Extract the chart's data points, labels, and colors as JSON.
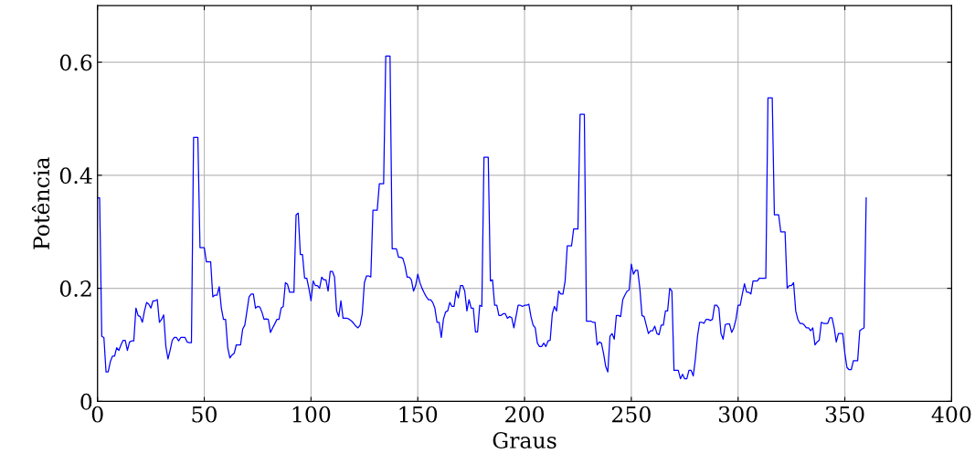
{
  "chart_data": {
    "type": "line",
    "xlabel": "Graus",
    "ylabel": "Potência",
    "xlim": [
      0,
      400
    ],
    "xticks": [
      0,
      50,
      100,
      150,
      200,
      250,
      300,
      350,
      400
    ],
    "ylim": [
      0,
      0.7
    ],
    "yticks": [
      0,
      0.2,
      0.4,
      0.6
    ],
    "grid": true,
    "x": [
      0,
      1,
      2,
      3,
      4,
      5,
      6,
      7,
      8,
      9,
      10,
      11,
      12,
      13,
      14,
      15,
      16,
      17,
      18,
      19,
      20,
      21,
      22,
      23,
      24,
      25,
      26,
      27,
      28,
      29,
      30,
      31,
      32,
      33,
      34,
      35,
      36,
      37,
      38,
      39,
      40,
      41,
      42,
      43,
      44,
      45,
      46,
      47,
      48,
      49,
      50,
      51,
      52,
      53,
      54,
      55,
      56,
      57,
      58,
      59,
      60,
      61,
      62,
      63,
      64,
      65,
      66,
      67,
      68,
      69,
      70,
      71,
      72,
      73,
      74,
      75,
      76,
      77,
      78,
      79,
      80,
      81,
      82,
      83,
      84,
      85,
      86,
      87,
      88,
      89,
      90,
      91,
      92,
      93,
      94,
      95,
      96,
      97,
      98,
      99,
      100,
      101,
      102,
      103,
      104,
      105,
      106,
      107,
      108,
      109,
      110,
      111,
      112,
      113,
      114,
      115,
      116,
      117,
      118,
      119,
      120,
      121,
      122,
      123,
      124,
      125,
      126,
      127,
      128,
      129,
      130,
      131,
      132,
      133,
      134,
      135,
      136,
      137,
      138,
      139,
      140,
      141,
      142,
      143,
      144,
      145,
      146,
      147,
      148,
      149,
      150,
      151,
      152,
      153,
      154,
      155,
      156,
      157,
      158,
      159,
      160,
      161,
      162,
      163,
      164,
      165,
      166,
      167,
      168,
      169,
      170,
      171,
      172,
      173,
      174,
      175,
      176,
      177,
      178,
      179,
      180,
      181,
      182,
      183,
      184,
      185,
      186,
      187,
      188,
      189,
      190,
      191,
      192,
      193,
      194,
      195,
      196,
      197,
      198,
      199,
      200,
      201,
      202,
      203,
      204,
      205,
      206,
      207,
      208,
      209,
      210,
      211,
      212,
      213,
      214,
      215,
      216,
      217,
      218,
      219,
      220,
      221,
      222,
      223,
      224,
      225,
      226,
      227,
      228,
      229,
      230,
      231,
      232,
      233,
      234,
      235,
      236,
      237,
      238,
      239,
      240,
      241,
      242,
      243,
      244,
      245,
      246,
      247,
      248,
      249,
      250,
      251,
      252,
      253,
      254,
      255,
      256,
      257,
      258,
      259,
      260,
      261,
      262,
      263,
      264,
      265,
      266,
      267,
      268,
      269,
      270,
      271,
      272,
      273,
      274,
      275,
      276,
      277,
      278,
      279,
      280,
      281,
      282,
      283,
      284,
      285,
      286,
      287,
      288,
      289,
      290,
      291,
      292,
      293,
      294,
      295,
      296,
      297,
      298,
      299,
      300,
      301,
      302,
      303,
      304,
      305,
      306,
      307,
      308,
      309,
      310,
      311,
      312,
      313,
      314,
      315,
      316,
      317,
      318,
      319,
      320,
      321,
      322,
      323,
      324,
      325,
      326,
      327,
      328,
      329,
      330,
      331,
      332,
      333,
      334,
      335,
      336,
      337,
      338,
      339,
      340,
      341,
      342,
      343,
      344,
      345,
      346,
      347,
      348,
      349,
      350,
      351,
      352,
      353,
      354,
      355,
      356,
      357,
      358,
      359,
      360
    ],
    "series": [
      {
        "color": "#0000ff",
        "values": [
          0.36,
          0.36,
          0.115,
          0.113,
          0.052,
          0.052,
          0.07,
          0.08,
          0.08,
          0.095,
          0.09,
          0.1,
          0.108,
          0.108,
          0.09,
          0.105,
          0.107,
          0.107,
          0.165,
          0.152,
          0.15,
          0.14,
          0.16,
          0.175,
          0.172,
          0.165,
          0.178,
          0.178,
          0.18,
          0.14,
          0.145,
          0.153,
          0.098,
          0.075,
          0.09,
          0.108,
          0.113,
          0.113,
          0.107,
          0.113,
          0.113,
          0.113,
          0.105,
          0.104,
          0.104,
          0.467,
          0.467,
          0.467,
          0.272,
          0.272,
          0.272,
          0.247,
          0.247,
          0.247,
          0.185,
          0.188,
          0.188,
          0.203,
          0.165,
          0.145,
          0.145,
          0.095,
          0.077,
          0.082,
          0.085,
          0.1,
          0.1,
          0.1,
          0.128,
          0.135,
          0.16,
          0.185,
          0.19,
          0.19,
          0.165,
          0.168,
          0.167,
          0.158,
          0.145,
          0.146,
          0.145,
          0.122,
          0.13,
          0.137,
          0.145,
          0.145,
          0.165,
          0.168,
          0.21,
          0.207,
          0.193,
          0.193,
          0.193,
          0.33,
          0.333,
          0.26,
          0.26,
          0.218,
          0.218,
          0.2,
          0.178,
          0.213,
          0.205,
          0.205,
          0.2,
          0.22,
          0.215,
          0.215,
          0.195,
          0.23,
          0.23,
          0.22,
          0.16,
          0.15,
          0.178,
          0.147,
          0.147,
          0.147,
          0.145,
          0.142,
          0.138,
          0.133,
          0.13,
          0.135,
          0.155,
          0.21,
          0.222,
          0.222,
          0.22,
          0.338,
          0.338,
          0.338,
          0.385,
          0.385,
          0.385,
          0.611,
          0.611,
          0.611,
          0.27,
          0.27,
          0.27,
          0.255,
          0.255,
          0.253,
          0.24,
          0.22,
          0.22,
          0.215,
          0.195,
          0.205,
          0.225,
          0.21,
          0.2,
          0.192,
          0.185,
          0.18,
          0.18,
          0.175,
          0.165,
          0.14,
          0.14,
          0.113,
          0.145,
          0.158,
          0.16,
          0.175,
          0.168,
          0.168,
          0.195,
          0.183,
          0.205,
          0.205,
          0.195,
          0.16,
          0.18,
          0.165,
          0.165,
          0.123,
          0.123,
          0.17,
          0.168,
          0.432,
          0.432,
          0.432,
          0.213,
          0.215,
          0.17,
          0.17,
          0.152,
          0.152,
          0.155,
          0.155,
          0.147,
          0.15,
          0.148,
          0.13,
          0.15,
          0.17,
          0.17,
          0.168,
          0.17,
          0.17,
          0.172,
          0.15,
          0.135,
          0.13,
          0.103,
          0.097,
          0.097,
          0.103,
          0.097,
          0.107,
          0.108,
          0.155,
          0.168,
          0.16,
          0.195,
          0.19,
          0.19,
          0.213,
          0.275,
          0.275,
          0.275,
          0.305,
          0.305,
          0.305,
          0.508,
          0.508,
          0.508,
          0.142,
          0.142,
          0.142,
          0.14,
          0.14,
          0.1,
          0.105,
          0.103,
          0.085,
          0.062,
          0.052,
          0.115,
          0.12,
          0.11,
          0.152,
          0.152,
          0.15,
          0.18,
          0.188,
          0.195,
          0.197,
          0.243,
          0.225,
          0.232,
          0.232,
          0.2,
          0.152,
          0.15,
          0.135,
          0.12,
          0.125,
          0.125,
          0.133,
          0.12,
          0.118,
          0.135,
          0.135,
          0.16,
          0.16,
          0.2,
          0.195,
          0.055,
          0.055,
          0.055,
          0.04,
          0.048,
          0.04,
          0.04,
          0.055,
          0.055,
          0.045,
          0.075,
          0.115,
          0.14,
          0.14,
          0.138,
          0.145,
          0.145,
          0.143,
          0.145,
          0.17,
          0.17,
          0.165,
          0.12,
          0.11,
          0.136,
          0.137,
          0.137,
          0.122,
          0.13,
          0.145,
          0.17,
          0.17,
          0.19,
          0.208,
          0.193,
          0.193,
          0.19,
          0.213,
          0.213,
          0.213,
          0.218,
          0.218,
          0.218,
          0.218,
          0.537,
          0.537,
          0.537,
          0.33,
          0.33,
          0.33,
          0.3,
          0.3,
          0.3,
          0.2,
          0.205,
          0.205,
          0.21,
          0.16,
          0.145,
          0.138,
          0.138,
          0.135,
          0.13,
          0.13,
          0.125,
          0.13,
          0.1,
          0.105,
          0.108,
          0.14,
          0.138,
          0.138,
          0.138,
          0.148,
          0.148,
          0.13,
          0.105,
          0.12,
          0.12,
          0.12,
          0.085,
          0.06,
          0.056,
          0.056,
          0.072,
          0.072,
          0.072,
          0.125,
          0.128,
          0.13,
          0.36
        ]
      }
    ]
  }
}
